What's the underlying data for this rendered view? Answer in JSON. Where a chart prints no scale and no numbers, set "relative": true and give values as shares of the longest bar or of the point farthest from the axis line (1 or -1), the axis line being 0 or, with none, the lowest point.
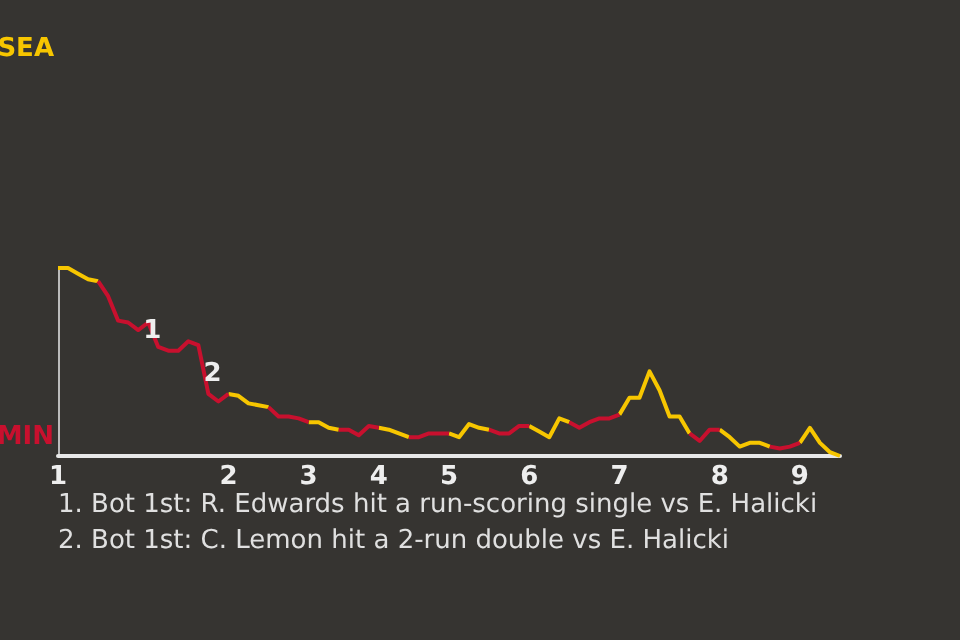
{
  "chart_data": {
    "type": "line",
    "relative": true,
    "annotations": [
      "SEA",
      "MIN",
      "1",
      "2",
      "1. Bot 1st: R. Edwards hit a run-scoring single vs E. Halicki",
      "2. Bot 1st: C. Lemon hit a 2-run double vs E. Halicki"
    ],
    "categories": [
      "1",
      null,
      null,
      null,
      null,
      null,
      null,
      null,
      null,
      null,
      null,
      null,
      null,
      null,
      null,
      null,
      null,
      "2",
      null,
      null,
      null,
      null,
      null,
      null,
      null,
      "3",
      null,
      null,
      null,
      null,
      null,
      null,
      "4",
      null,
      null,
      null,
      null,
      null,
      null,
      "5",
      null,
      null,
      null,
      null,
      null,
      null,
      null,
      "6",
      null,
      null,
      null,
      null,
      null,
      null,
      null,
      null,
      "7",
      null,
      null,
      null,
      null,
      null,
      null,
      null,
      null,
      null,
      "8",
      null,
      null,
      null,
      null,
      null,
      null,
      null,
      "9",
      null,
      null,
      null,
      null
    ],
    "series": [
      {
        "color": "#f7c600",
        "values": [
          1,
          1,
          0.97,
          0.94,
          0.93,
          null,
          null,
          null,
          null,
          null,
          null,
          null,
          null,
          null,
          null,
          null,
          null,
          0.33,
          0.32,
          0.28,
          0.27,
          0.26,
          null,
          null,
          null,
          0.18,
          0.18,
          0.15,
          0.14,
          null,
          null,
          null,
          0.15,
          0.14,
          0.12,
          0.1,
          null,
          null,
          null,
          0.12,
          0.1,
          0.17,
          0.15,
          0.14,
          null,
          null,
          null,
          0.16,
          0.13,
          0.1,
          0.2,
          0.18,
          null,
          null,
          null,
          null,
          0.22,
          0.31,
          0.31,
          0.45,
          0.35,
          0.21,
          0.21,
          0.12,
          null,
          null,
          0.14,
          0.1,
          0.05,
          0.07,
          0.07,
          0.05,
          null,
          null,
          0.07,
          0.15,
          0.07,
          0.02,
          0
        ]
      },
      {
        "color": "#c8102e",
        "values": [
          null,
          null,
          null,
          null,
          0.93,
          0.85,
          0.72,
          0.71,
          0.67,
          0.71,
          0.58,
          0.56,
          0.56,
          0.61,
          0.59,
          0.33,
          0.29,
          0.33,
          null,
          null,
          null,
          0.26,
          0.21,
          0.21,
          0.2,
          0.18,
          null,
          null,
          0.14,
          0.14,
          0.11,
          0.16,
          0.15,
          null,
          null,
          0.1,
          0.1,
          0.12,
          0.12,
          0.12,
          null,
          null,
          null,
          0.14,
          0.12,
          0.12,
          0.16,
          0.16,
          null,
          null,
          null,
          0.18,
          0.15,
          0.18,
          0.2,
          0.2,
          0.22,
          null,
          null,
          null,
          null,
          null,
          null,
          0.12,
          0.08,
          0.14,
          0.14,
          null,
          null,
          null,
          null,
          0.05,
          0.04,
          0.05,
          0.07,
          null,
          null,
          null,
          null
        ]
      }
    ],
    "marker": "none"
  }
}
